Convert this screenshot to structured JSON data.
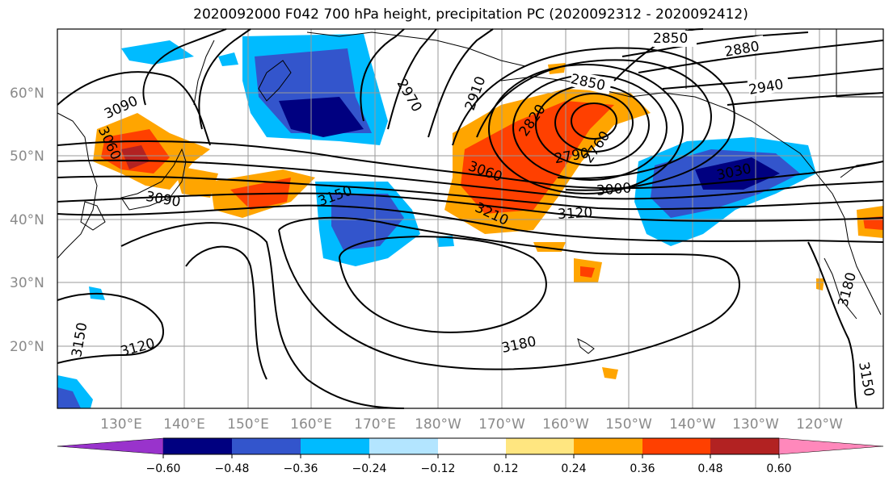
{
  "title": "2020092000 F042 700 hPa height, precipitation PC (2020092312 - 2020092412)",
  "lat_labels": [
    "60°N",
    "50°N",
    "40°N",
    "30°N",
    "20°N"
  ],
  "lon_labels": [
    "130°E",
    "140°E",
    "150°E",
    "160°E",
    "170°E",
    "180°W",
    "170°W",
    "160°W",
    "150°W",
    "140°W",
    "130°W",
    "120°W"
  ],
  "contour_labels": [
    "2850",
    "2880",
    "2940",
    "2850",
    "2910",
    "2970",
    "3090",
    "3060",
    "2820",
    "2790",
    "2760",
    "3030",
    "3000",
    "3060",
    "3120",
    "3150",
    "3090",
    "3210",
    "3180",
    "3120",
    "3150",
    "3180",
    "3150"
  ],
  "colorbar": {
    "colors": [
      "#9933cc",
      "#000080",
      "#3355cc",
      "#00bbff",
      "#b3e5ff",
      "#ffffff",
      "#ffe680",
      "#ffa500",
      "#ff4000",
      "#b22222",
      "#ff88bb"
    ],
    "tick_labels": [
      "−0.60",
      "−0.48",
      "−0.36",
      "−0.24",
      "−0.12",
      "0.12",
      "0.24",
      "0.36",
      "0.48",
      "0.60"
    ]
  },
  "colors": {
    "grid": "#9a9a9a",
    "contour": "#000000",
    "coast": "#000000"
  }
}
